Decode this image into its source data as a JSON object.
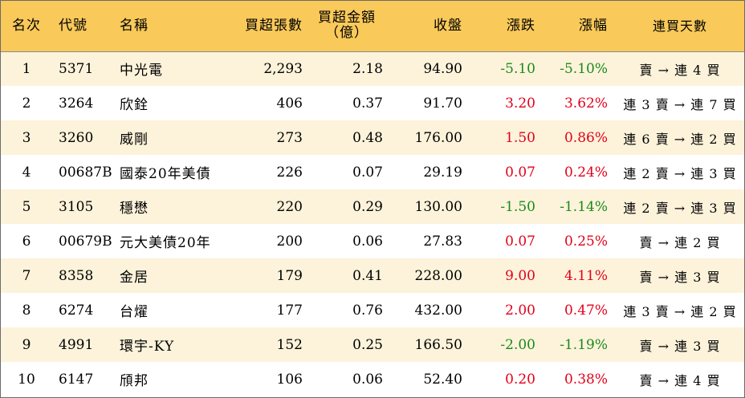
{
  "headers": {
    "rank": "名次",
    "code": "代號",
    "name": "名稱",
    "net_lots": "買超張數",
    "net_amount_line1": "買超金額",
    "net_amount_line2": "（億）",
    "close": "收盤",
    "change": "漲跌",
    "change_pct": "漲幅",
    "streak": "連買天數"
  },
  "colors": {
    "up": "#e2001a",
    "down": "#1a8a1a",
    "header_bg": "#f9c95a",
    "stripe": "#fdf3db"
  },
  "rows": [
    {
      "rank": "1",
      "code": "5371",
      "name": "中光電",
      "net_lots": "2,293",
      "net_amount": "2.18",
      "close": "94.90",
      "change": "-5.10",
      "change_pct": "-5.10%",
      "trend": "down",
      "streak": "賣 → 連 4 買"
    },
    {
      "rank": "2",
      "code": "3264",
      "name": "欣銓",
      "net_lots": "406",
      "net_amount": "0.37",
      "close": "91.70",
      "change": "3.20",
      "change_pct": "3.62%",
      "trend": "up",
      "streak": "連 3 賣 → 連 7 買"
    },
    {
      "rank": "3",
      "code": "3260",
      "name": "威剛",
      "net_lots": "273",
      "net_amount": "0.48",
      "close": "176.00",
      "change": "1.50",
      "change_pct": "0.86%",
      "trend": "up",
      "streak": "連 6 賣 → 連 2 買"
    },
    {
      "rank": "4",
      "code": "00687B",
      "name": "國泰20年美債",
      "net_lots": "226",
      "net_amount": "0.07",
      "close": "29.19",
      "change": "0.07",
      "change_pct": "0.24%",
      "trend": "up",
      "streak": "連 2 賣 → 連 3 買"
    },
    {
      "rank": "5",
      "code": "3105",
      "name": "穩懋",
      "net_lots": "220",
      "net_amount": "0.29",
      "close": "130.00",
      "change": "-1.50",
      "change_pct": "-1.14%",
      "trend": "down",
      "streak": "連 2 賣 → 連 3 買"
    },
    {
      "rank": "6",
      "code": "00679B",
      "name": "元大美債20年",
      "net_lots": "200",
      "net_amount": "0.06",
      "close": "27.83",
      "change": "0.07",
      "change_pct": "0.25%",
      "trend": "up",
      "streak": "賣 → 連 2 買"
    },
    {
      "rank": "7",
      "code": "8358",
      "name": "金居",
      "net_lots": "179",
      "net_amount": "0.41",
      "close": "228.00",
      "change": "9.00",
      "change_pct": "4.11%",
      "trend": "up",
      "streak": "賣 → 連 3 買"
    },
    {
      "rank": "8",
      "code": "6274",
      "name": "台燿",
      "net_lots": "177",
      "net_amount": "0.76",
      "close": "432.00",
      "change": "2.00",
      "change_pct": "0.47%",
      "trend": "up",
      "streak": "連 3 賣 → 連 2 買"
    },
    {
      "rank": "9",
      "code": "4991",
      "name": "環宇-KY",
      "net_lots": "152",
      "net_amount": "0.25",
      "close": "166.50",
      "change": "-2.00",
      "change_pct": "-1.19%",
      "trend": "down",
      "streak": "賣 → 連 3 買"
    },
    {
      "rank": "10",
      "code": "6147",
      "name": "頎邦",
      "net_lots": "106",
      "net_amount": "0.06",
      "close": "52.40",
      "change": "0.20",
      "change_pct": "0.38%",
      "trend": "up",
      "streak": "賣 → 連 4 買"
    }
  ]
}
